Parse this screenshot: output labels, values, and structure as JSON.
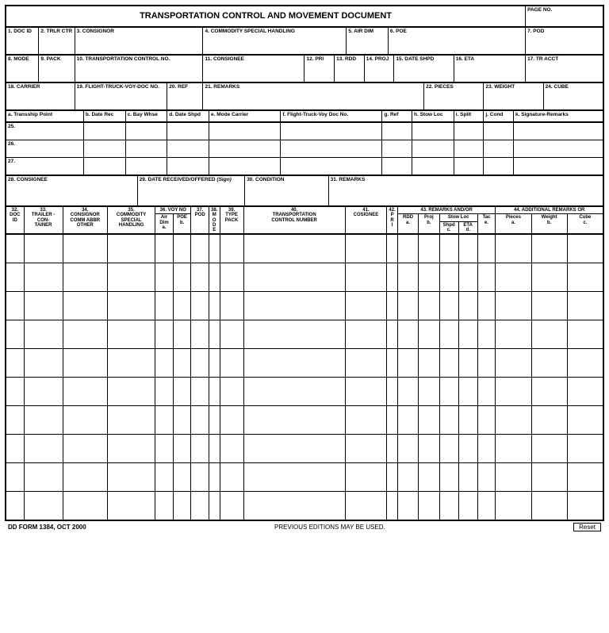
{
  "form": {
    "title": "TRANSPORTATION CONTROL AND MOVEMENT DOCUMENT",
    "page_label": "PAGE NO.",
    "footer_left": "DD FORM 1384, OCT 2000",
    "footer_mid": "PREVIOUS EDITIONS MAY BE USED.",
    "reset": "Reset"
  },
  "row1": {
    "c1": "1. DOC ID",
    "c2": "2. TRLR CTR",
    "c3": "3. CONSIGNOR",
    "c4": "4. COMMODITY SPECIAL HANDLING",
    "c5": "5. AIR DIM",
    "c6": "6. POE",
    "c7": "7. POD"
  },
  "row2": {
    "c8": "8. MODE",
    "c9": "9. PACK",
    "c10": "10. TRANSPORTATION CONTROL NO.",
    "c11": "11. CONSIGNEE",
    "c12": "12. PRI",
    "c13": "13. RDD",
    "c14": "14. PROJ",
    "c15": "15. DATE SHPD",
    "c16": "16. ETA",
    "c17": "17. TR ACCT"
  },
  "row3": {
    "c18": "18. CARRIER",
    "c19": "19. FLIGHT-TRUCK-VOY-DOC NO.",
    "c20": "20. REF",
    "c21": "21. REMARKS",
    "c22": "22. PIECES",
    "c23": "23. WEIGHT",
    "c24": "24. CUBE"
  },
  "row4": {
    "a": "a. Transship Point",
    "b": "b. Date Rec",
    "c": "c. Bay Whse",
    "d": "d. Date Shpd",
    "e": "e. Mode Carrier",
    "f": "f. Flight-Truck-Voy Doc No.",
    "g": "g. Ref",
    "h": "h. Stow Loc",
    "i": "i. Split",
    "j": "j. Cond",
    "k": "k. Signature-Remarks"
  },
  "numrows": {
    "r25": "25.",
    "r26": "26.",
    "r27": "27."
  },
  "row5": {
    "c28": "28. CONSIGNEE",
    "c29": "29. DATE RECEIVED/OFFERED",
    "c29_sign": "(Sign)",
    "c30": "30. CONDITION",
    "c31": "31. REMARKS"
  },
  "lower": {
    "c32a": "32.",
    "c32b": "DOC",
    "c32c": "ID",
    "c33a": "33.",
    "c33b": "TRAILER -",
    "c33c": "CON-",
    "c33d": "TAINER",
    "c34a": "34.",
    "c34b": "CONSIGNOR",
    "c34c": "COMM ABBR",
    "c34d": "OTHER",
    "c35a": "35.",
    "c35b": "COMMODITY",
    "c35c": "SPECIAL",
    "c35d": "HANDLING",
    "c36": "36. VOY NO",
    "c36_air1": "Air",
    "c36_air2": "Dim",
    "c36_air3": "a.",
    "c36_poe1": "POE",
    "c36_poe2": "b.",
    "c37a": "37.",
    "c37b": "POD",
    "c38a": "38.",
    "c38b": "M",
    "c38c": "O",
    "c38d": "D",
    "c38e": "E",
    "c39a": "39.",
    "c39b": "TYPE",
    "c39c": "PACK",
    "c40a": "40.",
    "c40b": "TRANSPORTATION",
    "c40c": "CONTROL NUMBER",
    "c41a": "41.",
    "c41b": "COSIGNEE",
    "c42a": "42.",
    "c42b": "P",
    "c42c": "R",
    "c42d": "I",
    "c43": "43. REMARKS AND/OR",
    "c43_rdd1": "RDD",
    "c43_rdd2": "a.",
    "c43_proj1": "Proj",
    "c43_proj2": "b.",
    "c43_stow": "Stow Loc",
    "c43_shpd1": "Shpd",
    "c43_shpd2": "c.",
    "c43_eta1": "ETA",
    "c43_eta2": "d.",
    "c43_tac1": "Tac",
    "c43_tac2": "e.",
    "c44": "44. ADDITIONAL REMARKS OR",
    "c44_p1": "Pieces",
    "c44_p2": "a.",
    "c44_w1": "Weight",
    "c44_w2": "b.",
    "c44_c1": "Cube",
    "c44_c2": "c."
  },
  "style": {
    "border_color": "#000000",
    "background": "#ffffff",
    "font_family": "Arial",
    "title_fontsize": 11,
    "label_fontsize": 6.5,
    "data_row_count": 10,
    "data_row_height": 36
  }
}
